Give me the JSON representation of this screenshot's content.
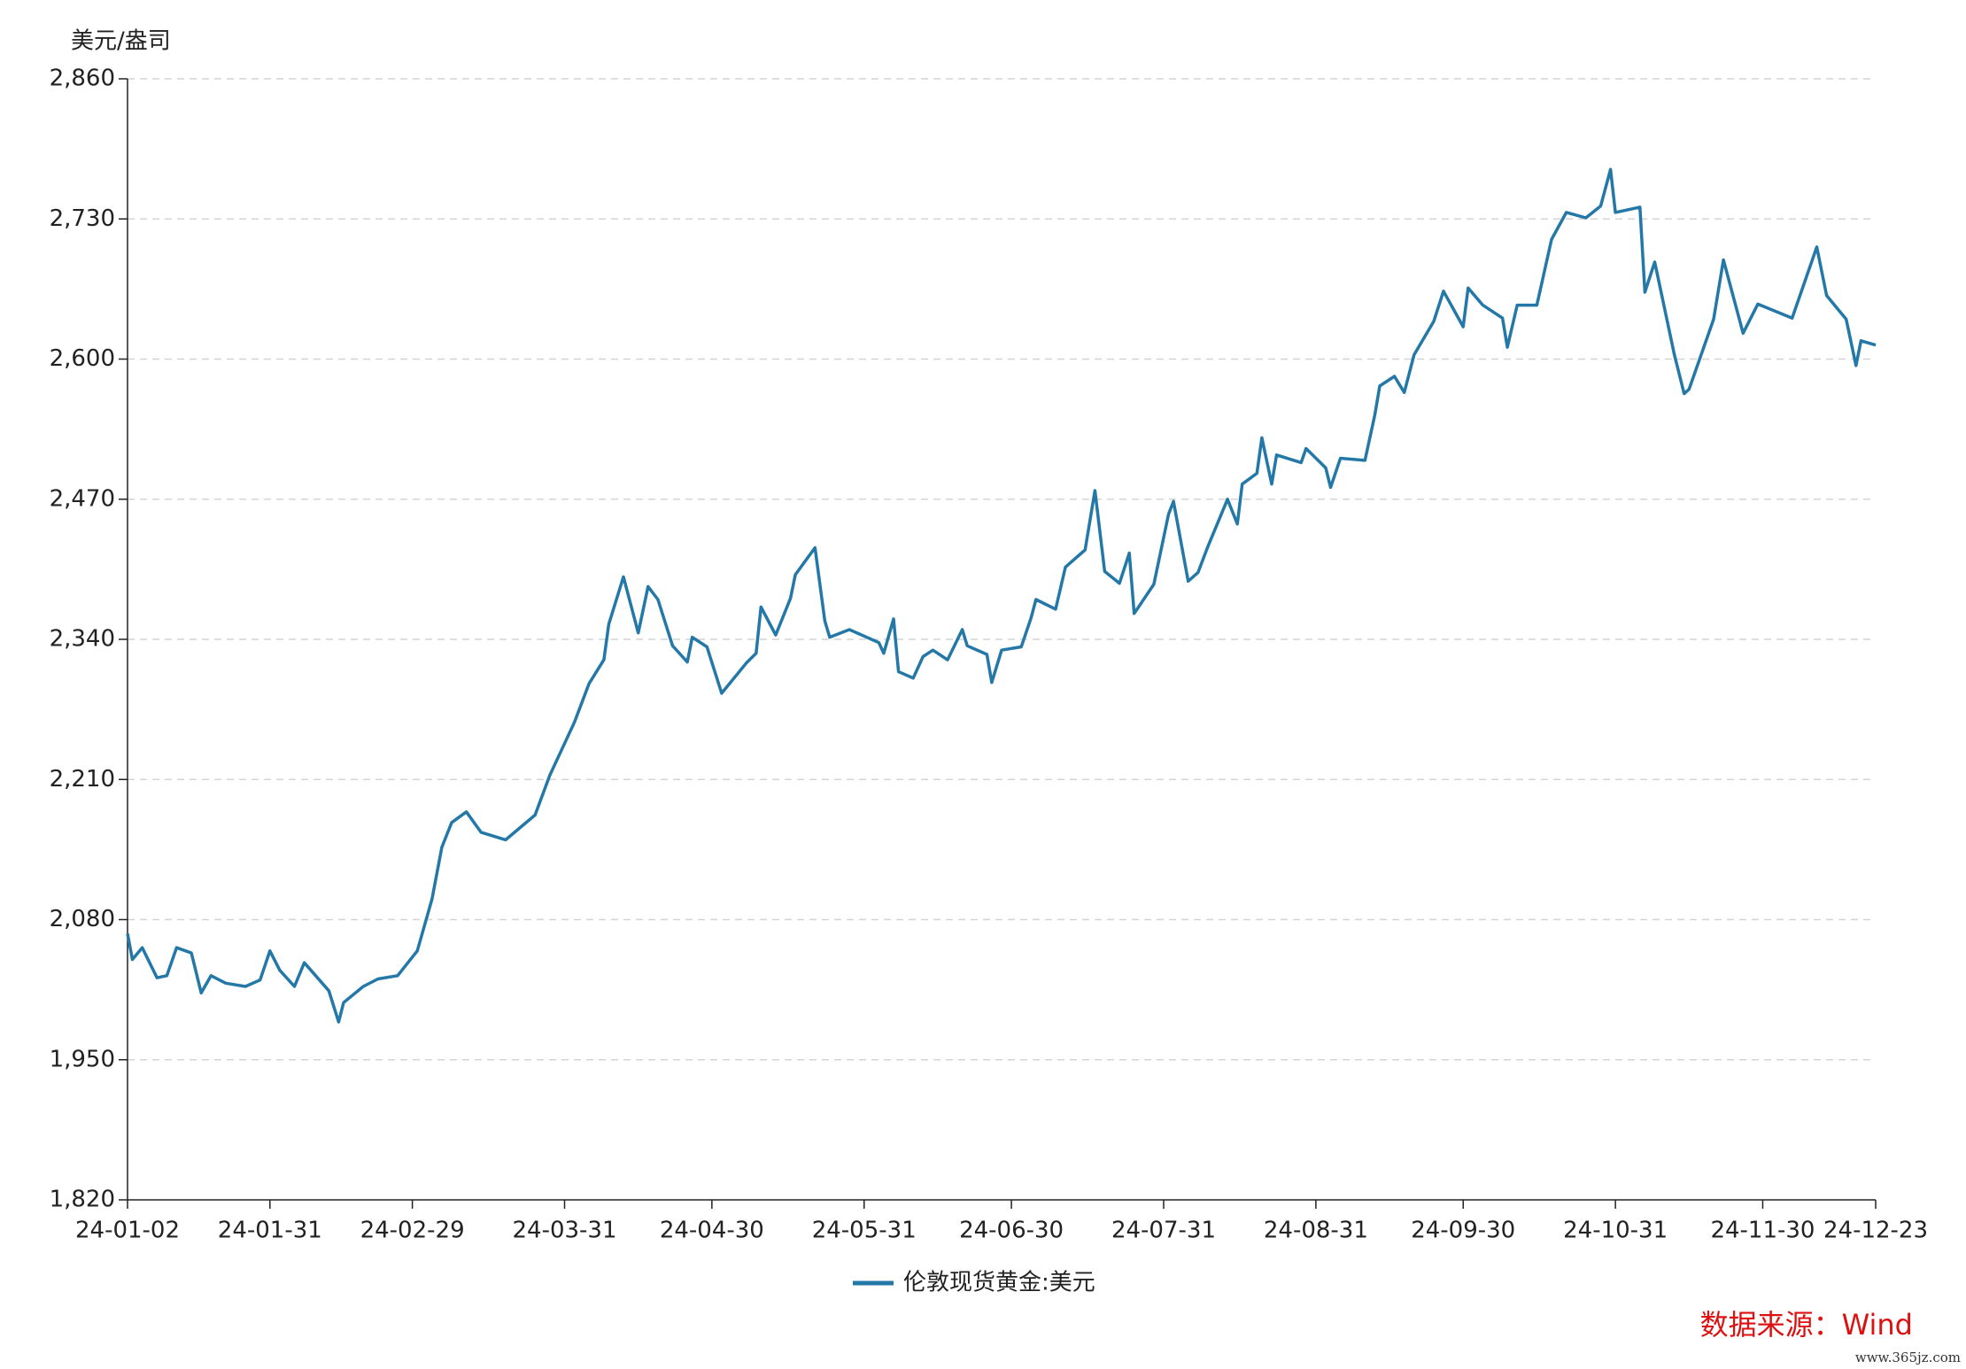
{
  "chart_data": {
    "type": "line",
    "y_label": "美元/盎司",
    "x": [
      "24-01-02",
      "24-01-03",
      "24-01-05",
      "24-01-08",
      "24-01-10",
      "24-01-12",
      "24-01-15",
      "24-01-17",
      "24-01-19",
      "24-01-22",
      "24-01-26",
      "24-01-29",
      "24-01-31",
      "24-02-02",
      "24-02-05",
      "24-02-07",
      "24-02-12",
      "24-02-14",
      "24-02-15",
      "24-02-19",
      "24-02-22",
      "24-02-26",
      "24-03-01",
      "24-03-04",
      "24-03-06",
      "24-03-08",
      "24-03-11",
      "24-03-14",
      "24-03-19",
      "24-03-25",
      "24-03-28",
      "24-04-02",
      "24-04-05",
      "24-04-08",
      "24-04-09",
      "24-04-12",
      "24-04-15",
      "24-04-17",
      "24-04-19",
      "24-04-22",
      "24-04-25",
      "24-04-26",
      "24-04-29",
      "24-05-02",
      "24-05-07",
      "24-05-09",
      "24-05-10",
      "24-05-13",
      "24-05-16",
      "24-05-17",
      "24-05-21",
      "24-05-23",
      "24-05-24",
      "24-05-28",
      "24-06-03",
      "24-06-04",
      "24-06-06",
      "24-06-07",
      "24-06-10",
      "24-06-12",
      "24-06-14",
      "24-06-17",
      "24-06-20",
      "24-06-21",
      "24-06-25",
      "24-06-26",
      "24-06-28",
      "24-07-02",
      "24-07-04",
      "24-07-05",
      "24-07-09",
      "24-07-11",
      "24-07-15",
      "24-07-17",
      "24-07-19",
      "24-07-22",
      "24-07-24",
      "24-07-25",
      "24-07-29",
      "24-08-01",
      "24-08-02",
      "24-08-05",
      "24-08-07",
      "24-08-09",
      "24-08-13",
      "24-08-15",
      "24-08-16",
      "24-08-19",
      "24-08-20",
      "24-08-22",
      "24-08-23",
      "24-08-28",
      "24-08-29",
      "24-09-02",
      "24-09-03",
      "24-09-05",
      "24-09-10",
      "24-09-12",
      "24-09-13",
      "24-09-16",
      "24-09-18",
      "24-09-20",
      "24-09-24",
      "24-09-26",
      "24-09-30",
      "24-10-01",
      "24-10-04",
      "24-10-08",
      "24-10-09",
      "24-10-11",
      "24-10-15",
      "24-10-18",
      "24-10-21",
      "24-10-25",
      "24-10-28",
      "24-10-30",
      "24-10-31",
      "24-11-05",
      "24-11-06",
      "24-11-08",
      "24-11-12",
      "24-11-14",
      "24-11-15",
      "24-11-20",
      "24-11-22",
      "24-11-26",
      "24-11-29",
      "24-12-06",
      "24-12-11",
      "24-12-13",
      "24-12-17",
      "24-12-19",
      "24-12-20",
      "24-12-23"
    ],
    "series": [
      {
        "name": "伦敦现货黄金:美元",
        "color": "#2378a8",
        "values": [
          2067,
          2043,
          2054,
          2026,
          2028,
          2054,
          2049,
          2012,
          2028,
          2021,
          2018,
          2024,
          2051,
          2033,
          2018,
          2040,
          2014,
          1985,
          2003,
          2018,
          2025,
          2028,
          2051,
          2099,
          2147,
          2170,
          2180,
          2161,
          2154,
          2177,
          2214,
          2263,
          2299,
          2321,
          2354,
          2398,
          2346,
          2389,
          2377,
          2334,
          2319,
          2342,
          2333,
          2290,
          2318,
          2327,
          2370,
          2344,
          2378,
          2400,
          2425,
          2357,
          2342,
          2349,
          2337,
          2327,
          2359,
          2310,
          2304,
          2324,
          2330,
          2321,
          2349,
          2334,
          2326,
          2300,
          2330,
          2333,
          2360,
          2377,
          2368,
          2407,
          2423,
          2478,
          2403,
          2392,
          2420,
          2364,
          2391,
          2456,
          2468,
          2394,
          2402,
          2426,
          2470,
          2447,
          2484,
          2494,
          2527,
          2484,
          2511,
          2504,
          2517,
          2499,
          2481,
          2508,
          2506,
          2548,
          2575,
          2584,
          2569,
          2604,
          2635,
          2663,
          2630,
          2666,
          2650,
          2638,
          2611,
          2650,
          2650,
          2711,
          2736,
          2731,
          2742,
          2776,
          2736,
          2741,
          2662,
          2690,
          2604,
          2568,
          2572,
          2637,
          2692,
          2624,
          2651,
          2638,
          2704,
          2659,
          2637,
          2594,
          2617,
          2613
        ]
      }
    ],
    "xlim": [
      "24-01-02",
      "24-12-23"
    ],
    "xticks": [
      "24-01-02",
      "24-01-31",
      "24-02-29",
      "24-03-31",
      "24-04-30",
      "24-05-31",
      "24-06-30",
      "24-07-31",
      "24-08-31",
      "24-09-30",
      "24-10-31",
      "24-11-30",
      "24-12-23"
    ],
    "ylim": [
      1820,
      2860
    ],
    "yticks": [
      {
        "value": 1820,
        "label": "1,820"
      },
      {
        "value": 1950,
        "label": "1,950"
      },
      {
        "value": 2080,
        "label": "2,080"
      },
      {
        "value": 2210,
        "label": "2,210"
      },
      {
        "value": 2340,
        "label": "2,340"
      },
      {
        "value": 2470,
        "label": "2,470"
      },
      {
        "value": 2600,
        "label": "2,600"
      },
      {
        "value": 2730,
        "label": "2,730"
      },
      {
        "value": 2860,
        "label": "2,860"
      }
    ],
    "grid": true,
    "legend": "bottom",
    "source": "数据来源：Wind",
    "watermark": "www.365jz.com"
  }
}
